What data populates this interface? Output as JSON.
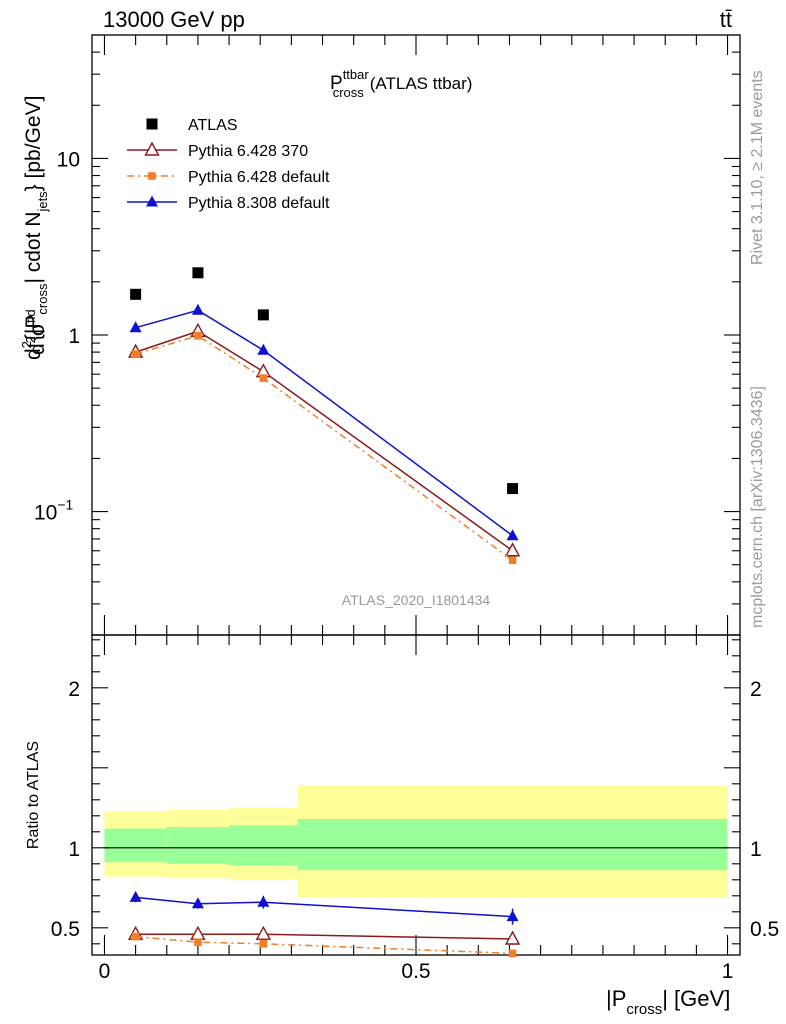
{
  "header": {
    "energy": "13000 GeV pp",
    "process": "tt̄",
    "side_note_top": "Rivet 3.1.10, ≥ 2.1M events",
    "side_note_bottom": "mcplots.cern.ch [arXiv:1306.3436]",
    "watermark": "ATLAS_2020_I1801434"
  },
  "main_title": {
    "base": "P",
    "sup": "ttbar",
    "sub": "cross",
    "suffix": "(ATLAS ttbar)"
  },
  "y_axis_label": {
    "p1": "d",
    "p2": "σ",
    "p2_sup": "fid",
    "p3": "d",
    "p3_sup": "2",
    "p4": "{|P",
    "p4_sub": "cross",
    "p5": "| cdot N",
    "p5_sub": "jets",
    "p6": "} [pb/GeV]",
    "p1_sup": "2"
  },
  "ratio_y_label": "Ratio to ATLAS",
  "x_axis_label": {
    "base": "|P",
    "sub": "cross",
    "suffix": "| [GeV]"
  },
  "main_y_ticks": [
    {
      "value": 10,
      "label": "10"
    },
    {
      "value": 1,
      "label": "1"
    },
    {
      "value": 0.1,
      "label": "10",
      "sup": "−1"
    }
  ],
  "ratio_y_ticks": [
    {
      "value": 2,
      "label": "2"
    },
    {
      "value": 1,
      "label": "1"
    },
    {
      "value": 0.5,
      "label": "0.5"
    }
  ],
  "x_ticks": [
    {
      "value": 0,
      "label": "0"
    },
    {
      "value": 0.5,
      "label": "0.5"
    },
    {
      "value": 1,
      "label": "1"
    }
  ],
  "legend": [
    {
      "name": "ATLAS",
      "color": "#000000",
      "marker": "square",
      "line": "none"
    },
    {
      "name": "Pythia 6.428 370",
      "color": "#8b1a1a",
      "marker": "triangle-open",
      "line": "solid"
    },
    {
      "name": "Pythia 6.428 default",
      "color": "#f07f28",
      "marker": "square-small",
      "line": "dashdot"
    },
    {
      "name": "Pythia 8.308 default",
      "color": "#1010d0",
      "marker": "triangle",
      "line": "solid"
    }
  ],
  "chart_data": {
    "type": "scatter",
    "x_scale": "linear",
    "y_scale": "log",
    "xlim": [
      -0.02,
      1.02
    ],
    "ylim": [
      0.02,
      50
    ],
    "ratio_ylim": [
      0.33,
      2.33
    ],
    "x": [
      0.05,
      0.15,
      0.255,
      0.655
    ],
    "bin_edges": [
      0,
      0.1,
      0.2,
      0.31,
      1.0
    ],
    "series": [
      {
        "name": "ATLAS",
        "values": [
          1.7,
          2.25,
          1.3,
          0.135
        ]
      },
      {
        "name": "Pythia 6.428 370",
        "values": [
          0.8,
          1.05,
          0.62,
          0.06
        ],
        "ratio": [
          0.46,
          0.46,
          0.46,
          0.43
        ],
        "ratio_err": [
          0.03,
          0.03,
          0.03,
          0.03
        ]
      },
      {
        "name": "Pythia 6.428 default",
        "values": [
          0.78,
          0.99,
          0.57,
          0.053
        ],
        "ratio": [
          0.445,
          0.41,
          0.4,
          0.34
        ],
        "ratio_err": [
          0.02,
          0.02,
          0.02,
          0.02
        ]
      },
      {
        "name": "Pythia 8.308 default",
        "values": [
          1.1,
          1.38,
          0.82,
          0.073
        ],
        "ratio": [
          0.69,
          0.65,
          0.66,
          0.57
        ],
        "ratio_err": [
          0.03,
          0.03,
          0.04,
          0.05
        ]
      }
    ],
    "uncertainty_bands": {
      "stat": [
        [
          0.91,
          1.12
        ],
        [
          0.9,
          1.13
        ],
        [
          0.89,
          1.14
        ],
        [
          0.86,
          1.18
        ]
      ],
      "total": [
        [
          0.82,
          1.23
        ],
        [
          0.81,
          1.24
        ],
        [
          0.8,
          1.25
        ],
        [
          0.69,
          1.39
        ]
      ],
      "stat_color": "#99ff99",
      "total_color": "#ffff99"
    }
  }
}
